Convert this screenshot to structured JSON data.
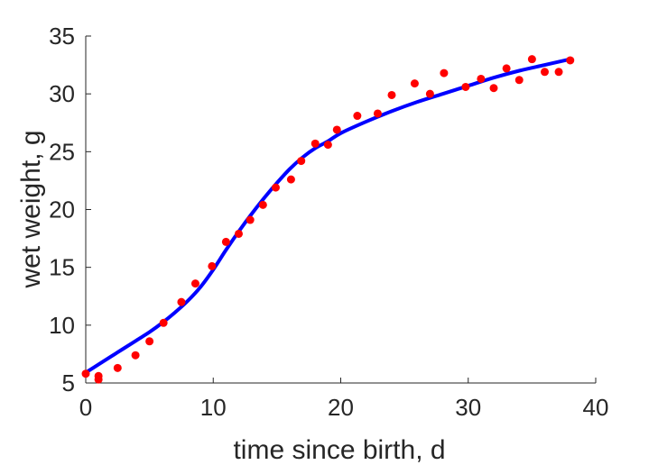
{
  "chart_data": {
    "type": "scatter",
    "title": "",
    "xlabel": "time since birth, d",
    "ylabel": "wet weight, g",
    "xlim": [
      0,
      40
    ],
    "ylim": [
      5,
      35
    ],
    "xticks": [
      0,
      10,
      20,
      30,
      40
    ],
    "yticks": [
      5,
      10,
      15,
      20,
      25,
      30,
      35
    ],
    "grid": false,
    "legend": "none",
    "series": [
      {
        "kind": "points",
        "color": "#ff0000",
        "x": [
          0.0,
          1.0,
          1.0,
          2.5,
          3.9,
          5.0,
          6.1,
          7.5,
          8.6,
          9.9,
          11.0,
          12.0,
          12.9,
          13.9,
          14.9,
          16.1,
          16.9,
          18.0,
          19.0,
          19.7,
          21.3,
          22.9,
          24.0,
          25.8,
          27.0,
          28.1,
          29.8,
          31.0,
          32.0,
          33.0,
          34.0,
          35.0,
          36.0,
          37.1,
          38.0
        ],
        "y": [
          5.8,
          5.6,
          5.3,
          6.3,
          7.4,
          8.6,
          10.2,
          12.0,
          13.6,
          15.1,
          17.2,
          17.9,
          19.1,
          20.4,
          21.9,
          22.6,
          24.2,
          25.7,
          25.6,
          26.9,
          28.1,
          28.3,
          29.9,
          30.9,
          30.0,
          31.8,
          30.6,
          31.3,
          30.5,
          32.2,
          31.2,
          33.0,
          31.9,
          31.9,
          32.9
        ]
      },
      {
        "kind": "line",
        "color": "#0000ff",
        "x": [
          0,
          1,
          2,
          3,
          4,
          5,
          6,
          7,
          8,
          9,
          10,
          11,
          12,
          13,
          14,
          15,
          16,
          17,
          18,
          19,
          20,
          22,
          24,
          26,
          28,
          30,
          32,
          34,
          36,
          38
        ],
        "y": [
          5.9,
          6.6,
          7.3,
          8.0,
          8.7,
          9.4,
          10.2,
          11.1,
          12.1,
          13.3,
          14.8,
          16.5,
          18.1,
          19.6,
          21.0,
          22.3,
          23.5,
          24.5,
          25.3,
          25.9,
          26.6,
          27.6,
          28.5,
          29.3,
          30.0,
          30.7,
          31.4,
          32.0,
          32.5,
          33.0
        ]
      }
    ]
  }
}
